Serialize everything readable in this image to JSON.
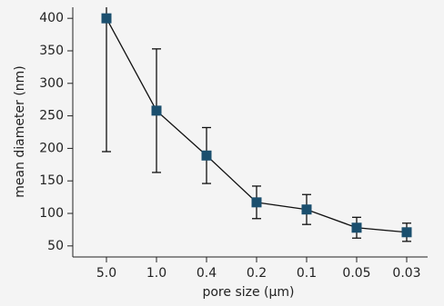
{
  "chart_data": {
    "type": "line",
    "x_label": "pore size (µm)",
    "y_label": "mean diameter (nm)",
    "categories": [
      "5.0",
      "1.0",
      "0.4",
      "0.2",
      "0.1",
      "0.05",
      "0.03"
    ],
    "series": [
      {
        "color": "#1b4f6e",
        "values": [
          400,
          258,
          189,
          117,
          106,
          78,
          71
        ],
        "errors": [
          205,
          95,
          43,
          25,
          23,
          16,
          14
        ]
      }
    ],
    "ylim": [
      33,
      417
    ],
    "yticks": [
      50,
      100,
      150,
      200,
      250,
      300,
      350,
      400
    ]
  }
}
